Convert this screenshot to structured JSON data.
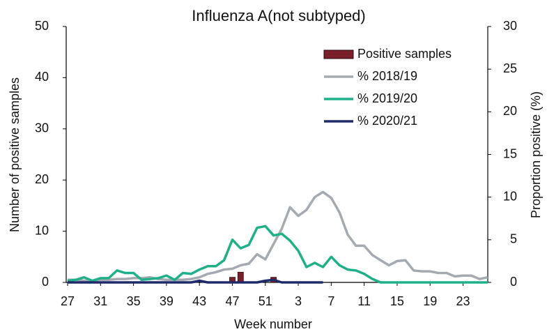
{
  "chart_data": {
    "type": "bar-line",
    "title": "Influenza A(not subtyped)",
    "x_label": "Week number",
    "y_label": "Number of positive samples",
    "y2_label": "Proportion positive (%)",
    "categories": [
      27,
      null,
      null,
      null,
      31,
      null,
      null,
      null,
      35,
      null,
      null,
      null,
      39,
      null,
      null,
      null,
      43,
      null,
      null,
      null,
      47,
      null,
      null,
      null,
      51,
      null,
      null,
      null,
      3,
      null,
      null,
      null,
      7,
      null,
      null,
      null,
      11,
      null,
      null,
      null,
      15,
      null,
      null,
      null,
      19,
      null,
      null,
      null,
      23,
      null,
      null,
      null
    ],
    "ylim": [
      0,
      50
    ],
    "yticks": [
      0,
      10,
      20,
      30,
      40,
      50
    ],
    "y2lim": [
      0,
      30
    ],
    "y2ticks": [
      0,
      5,
      10,
      15,
      20,
      25,
      30
    ],
    "legend": "top-right",
    "series": [
      {
        "name": "Positive samples",
        "type": "bar",
        "color": "#7b1f2a",
        "axis": "y",
        "values": [
          0,
          0,
          0,
          0,
          0,
          0,
          0,
          0,
          0,
          0,
          0,
          0,
          0,
          0,
          0,
          0,
          0,
          0,
          0,
          0,
          1,
          2,
          0,
          0,
          0,
          1,
          0,
          0,
          0,
          0,
          0,
          0,
          null,
          null,
          null,
          null,
          null,
          null,
          null,
          null,
          null,
          null,
          null,
          null,
          null,
          null,
          null,
          null,
          null,
          null,
          null,
          null
        ]
      },
      {
        "name": "% 2018/19",
        "type": "line",
        "color": "#a5a9b0",
        "axis": "y2",
        "values": [
          0.3,
          0.3,
          0.2,
          0.2,
          0.3,
          0.3,
          0.4,
          0.4,
          0.5,
          0.5,
          0.6,
          0.4,
          0.3,
          0.3,
          0.3,
          0.4,
          0.6,
          1.0,
          1.2,
          1.5,
          1.6,
          2.0,
          2.2,
          3.3,
          2.7,
          4.5,
          6.3,
          8.8,
          7.8,
          8.5,
          10.0,
          10.6,
          9.9,
          8.2,
          5.6,
          4.3,
          4.3,
          3.2,
          2.6,
          2.0,
          2.5,
          2.6,
          1.4,
          1.3,
          1.3,
          1.1,
          1.1,
          0.7,
          0.8,
          0.8,
          0.4,
          0.6
        ]
      },
      {
        "name": "% 2019/20",
        "type": "line",
        "color": "#1fb08a",
        "axis": "y2",
        "values": [
          0.2,
          0.3,
          0.6,
          0.2,
          0.5,
          0.5,
          1.4,
          1.1,
          1.1,
          0.3,
          0.4,
          0.5,
          0.8,
          0.3,
          1.1,
          1.0,
          1.5,
          1.9,
          1.9,
          2.6,
          5.0,
          4.0,
          4.4,
          6.4,
          6.6,
          5.5,
          5.7,
          4.9,
          3.7,
          1.8,
          2.3,
          1.8,
          3.0,
          2.0,
          1.5,
          1.4,
          1.0,
          0.4,
          0,
          0,
          0,
          0,
          0,
          0,
          0,
          0,
          0,
          0,
          0,
          0,
          0,
          0
        ]
      },
      {
        "name": "% 2020/21",
        "type": "line",
        "color": "#1f2a6b",
        "axis": "y2",
        "values": [
          0,
          0,
          0,
          0,
          0,
          0,
          0,
          0,
          0,
          0,
          0,
          0,
          0,
          0,
          0,
          0,
          0.2,
          0,
          0,
          0,
          0,
          0,
          0,
          0,
          0.2,
          0.3,
          0,
          0,
          0,
          0,
          0,
          0,
          null,
          null,
          null,
          null,
          null,
          null,
          null,
          null,
          null,
          null,
          null,
          null,
          null,
          null,
          null,
          null,
          null,
          null,
          null,
          null
        ]
      }
    ]
  }
}
